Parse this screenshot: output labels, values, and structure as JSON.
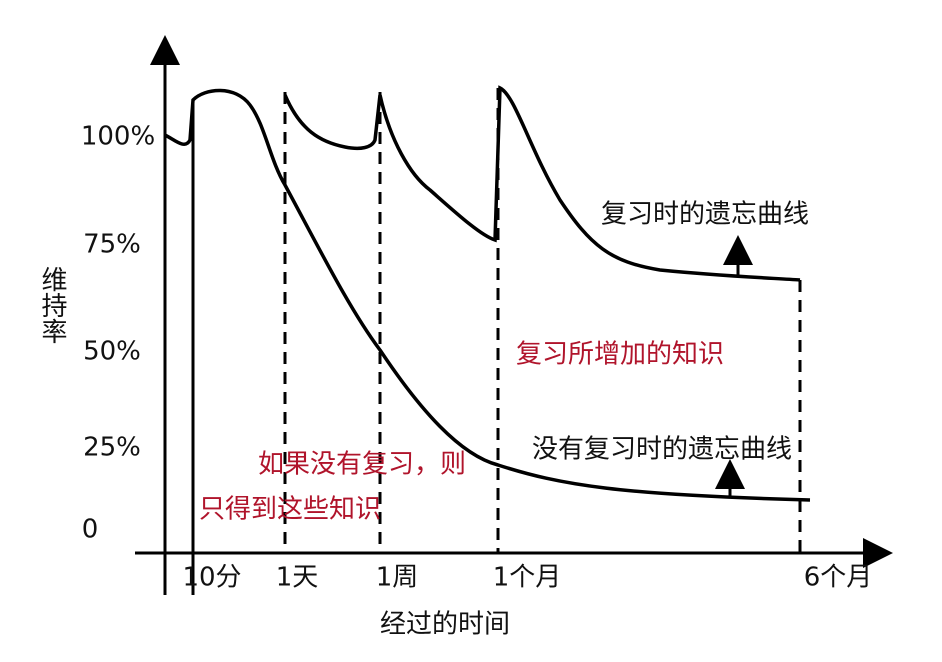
{
  "axis": {
    "y_label": "维持率",
    "x_label": "经过的时间",
    "y_ticks": [
      "100%",
      "75%",
      "50%",
      "25%",
      "0"
    ],
    "x_ticks": [
      "10分",
      "1天",
      "1周",
      "1个月",
      "6个月"
    ]
  },
  "annotations": [
    "复习时的遗忘曲线",
    "复习所增加的知识",
    "没有复习时的遗忘曲线",
    "如果没有复习，则",
    "只得到这些知识"
  ]
}
